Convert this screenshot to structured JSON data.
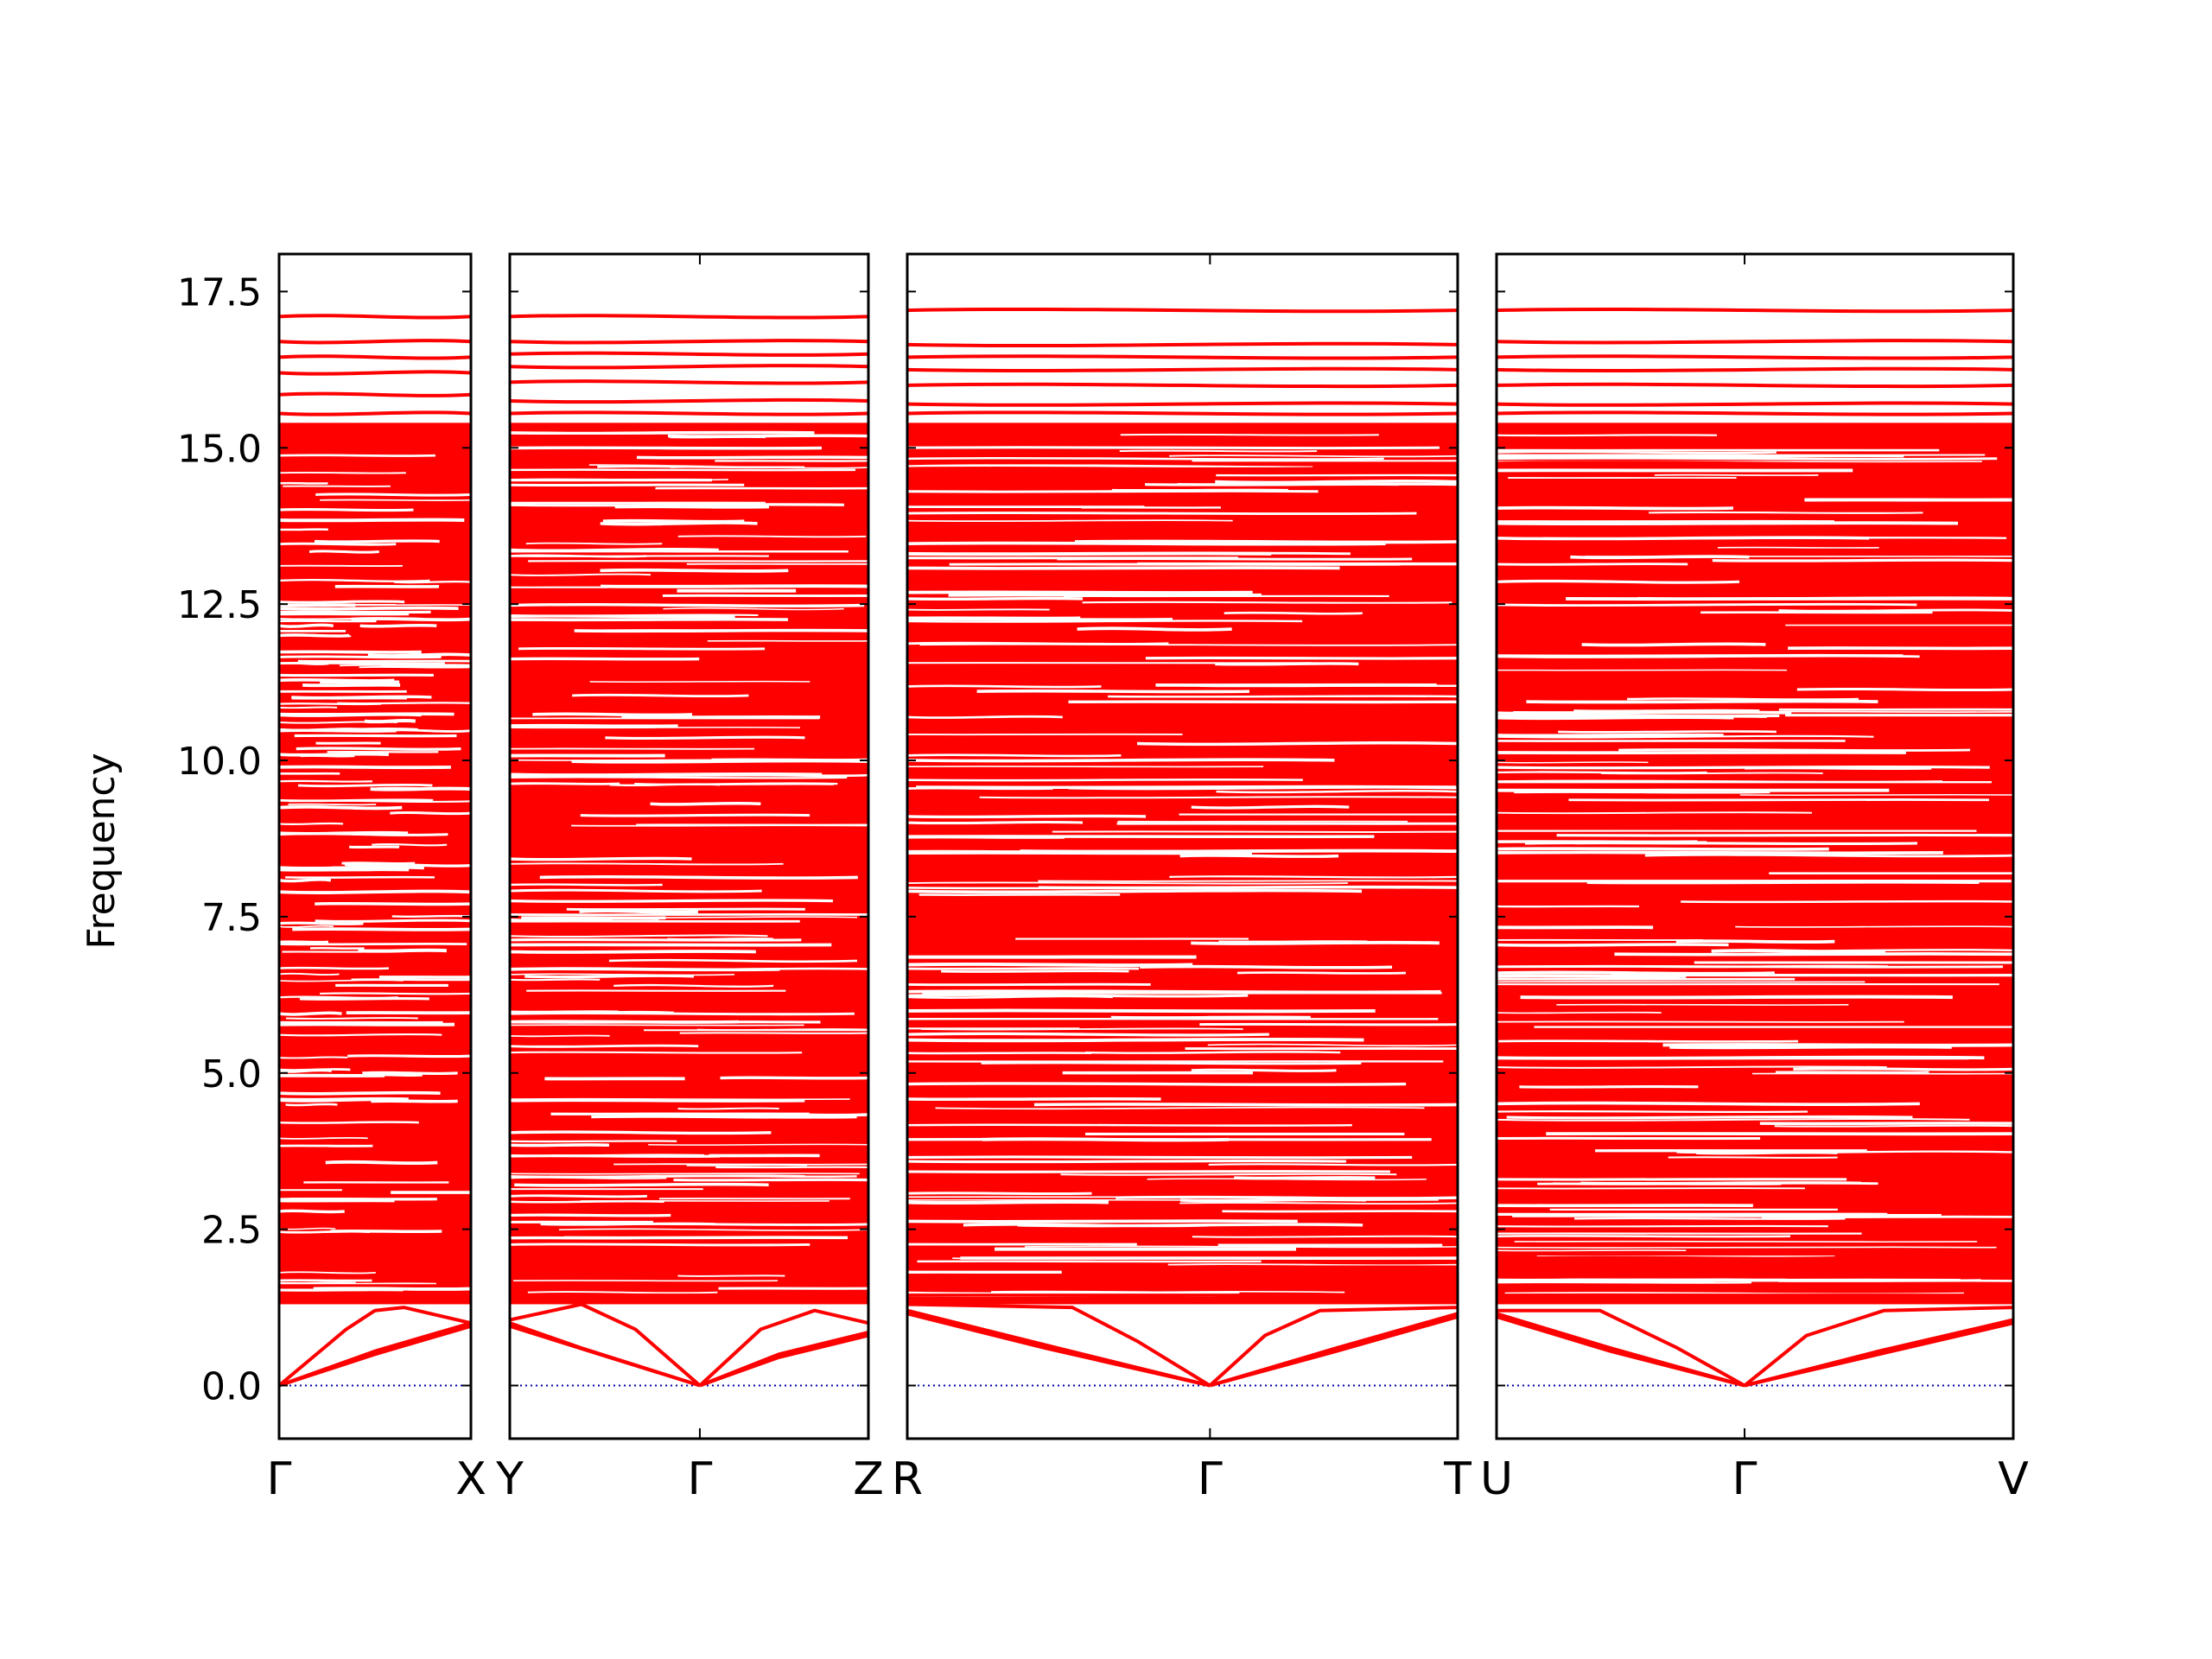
{
  "chart_data": {
    "type": "line",
    "ylabel": "Frequency",
    "ylim": [
      -0.85,
      18.1
    ],
    "yticks": [
      0.0,
      2.5,
      5.0,
      7.5,
      10.0,
      12.5,
      15.0,
      17.5
    ],
    "ytick_labels": [
      "0.0",
      "2.5",
      "5.0",
      "7.5",
      "10.0",
      "12.5",
      "15.0",
      "17.5"
    ],
    "zero_line": {
      "value": 0.0,
      "style": "dotted",
      "color": "#0000aa"
    },
    "band_color": "#ff0000",
    "panels": [
      {
        "kpoints": [
          "Γ",
          "X"
        ],
        "kpoint_positions": [
          0.0,
          1.0
        ],
        "acoustic": [
          {
            "name": "",
            "x": [
              0,
              0.35,
              0.5,
              0.65,
              1.0
            ],
            "y": [
              0.0,
              0.9,
              1.2,
              1.25,
              1.0
            ]
          },
          {
            "name": "",
            "x": [
              0,
              0.5,
              1.0
            ],
            "y": [
              0.0,
              0.55,
              1.0
            ]
          },
          {
            "name": "",
            "x": [
              0,
              0.5,
              1.0
            ],
            "y": [
              0.0,
              0.5,
              0.95
            ]
          }
        ],
        "flat_levels": [
          17.1,
          16.7,
          16.45,
          16.2,
          15.85,
          15.55,
          15.3,
          14.75
        ]
      },
      {
        "kpoints": [
          "Y",
          "Γ",
          "Z"
        ],
        "kpoint_positions": [
          0.0,
          0.53,
          1.0
        ],
        "acoustic": [
          {
            "name": "",
            "x": [
              0,
              0.2,
              0.53
            ],
            "y": [
              1.0,
              0.6,
              0.0
            ]
          },
          {
            "name": "",
            "x": [
              0,
              0.25,
              0.53
            ],
            "y": [
              0.95,
              0.5,
              0.0
            ]
          },
          {
            "name": "",
            "x": [
              0,
              0.2,
              0.35,
              0.53
            ],
            "y": [
              1.05,
              1.3,
              0.9,
              0.0
            ]
          },
          {
            "name": "",
            "x": [
              0.53,
              0.75,
              1.0
            ],
            "y": [
              0.0,
              0.5,
              0.85
            ]
          },
          {
            "name": "",
            "x": [
              0.53,
              0.75,
              1.0
            ],
            "y": [
              0.0,
              0.45,
              0.8
            ]
          },
          {
            "name": "",
            "x": [
              0.53,
              0.7,
              0.85,
              1.0
            ],
            "y": [
              0.0,
              0.9,
              1.2,
              1.0
            ]
          }
        ],
        "flat_levels": [
          17.1,
          16.7,
          16.5,
          16.3,
          16.05,
          15.75,
          15.55,
          15.3,
          14.75
        ]
      },
      {
        "kpoints": [
          "R",
          "Γ",
          "T"
        ],
        "kpoint_positions": [
          0.0,
          0.55,
          1.0
        ],
        "acoustic": [
          {
            "name": "",
            "x": [
              0,
              0.25,
              0.55
            ],
            "y": [
              1.2,
              0.65,
              0.0
            ]
          },
          {
            "name": "",
            "x": [
              0,
              0.25,
              0.55
            ],
            "y": [
              1.15,
              0.6,
              0.0
            ]
          },
          {
            "name": "",
            "x": [
              0,
              0.3,
              0.42,
              0.55
            ],
            "y": [
              1.3,
              1.25,
              0.7,
              0.0
            ]
          },
          {
            "name": "",
            "x": [
              0.55,
              0.78,
              1.0
            ],
            "y": [
              0.0,
              0.6,
              1.15
            ]
          },
          {
            "name": "",
            "x": [
              0.55,
              0.78,
              1.0
            ],
            "y": [
              0.0,
              0.55,
              1.1
            ]
          },
          {
            "name": "",
            "x": [
              0.55,
              0.65,
              0.75,
              1.0
            ],
            "y": [
              0.0,
              0.8,
              1.2,
              1.25
            ]
          }
        ],
        "flat_levels": [
          17.2,
          16.65,
          16.45,
          16.25,
          16.0,
          15.7,
          15.55,
          15.3,
          14.75
        ]
      },
      {
        "kpoints": [
          "U",
          "Γ",
          "V"
        ],
        "kpoint_positions": [
          0.0,
          0.48,
          1.0
        ],
        "acoustic": [
          {
            "name": "",
            "x": [
              0,
              0.22,
              0.48
            ],
            "y": [
              1.15,
              0.6,
              0.0
            ]
          },
          {
            "name": "",
            "x": [
              0,
              0.22,
              0.48
            ],
            "y": [
              1.1,
              0.55,
              0.0
            ]
          },
          {
            "name": "",
            "x": [
              0,
              0.2,
              0.35,
              0.48
            ],
            "y": [
              1.2,
              1.2,
              0.6,
              0.0
            ]
          },
          {
            "name": "",
            "x": [
              0.48,
              0.74,
              1.0
            ],
            "y": [
              0.0,
              0.55,
              1.05
            ]
          },
          {
            "name": "",
            "x": [
              0.48,
              0.74,
              1.0
            ],
            "y": [
              0.0,
              0.5,
              1.0
            ]
          },
          {
            "name": "",
            "x": [
              0.48,
              0.6,
              0.75,
              1.0
            ],
            "y": [
              0.0,
              0.8,
              1.2,
              1.25
            ]
          }
        ],
        "flat_levels": [
          17.2,
          16.7,
          16.45,
          16.25,
          16.0,
          15.7,
          15.55,
          15.3,
          14.75
        ]
      }
    ],
    "dense_region": {
      "y_min": 1.3,
      "y_max": 15.4
    }
  }
}
